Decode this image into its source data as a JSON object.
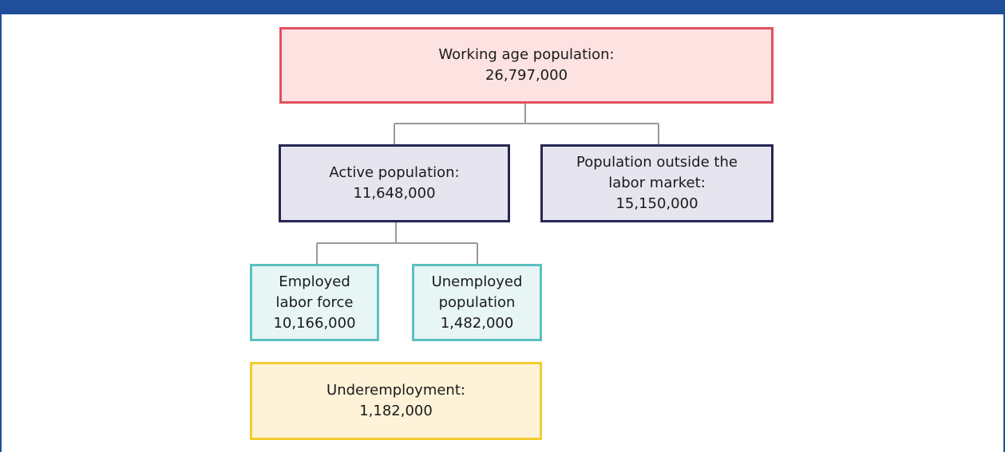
{
  "nodes": [
    {
      "label": "Working age population:",
      "value": "26,797,000"
    },
    {
      "label": "Active population:",
      "value": "11,648,000"
    },
    {
      "label": "Population outside the labor market:",
      "value": "15,150,000"
    },
    {
      "label": "Employed labor force",
      "value": "10,166,000"
    },
    {
      "label": "Unemployed population",
      "value": "1,482,000"
    },
    {
      "label": "Underemployment:",
      "value": "1,182,000"
    }
  ]
}
